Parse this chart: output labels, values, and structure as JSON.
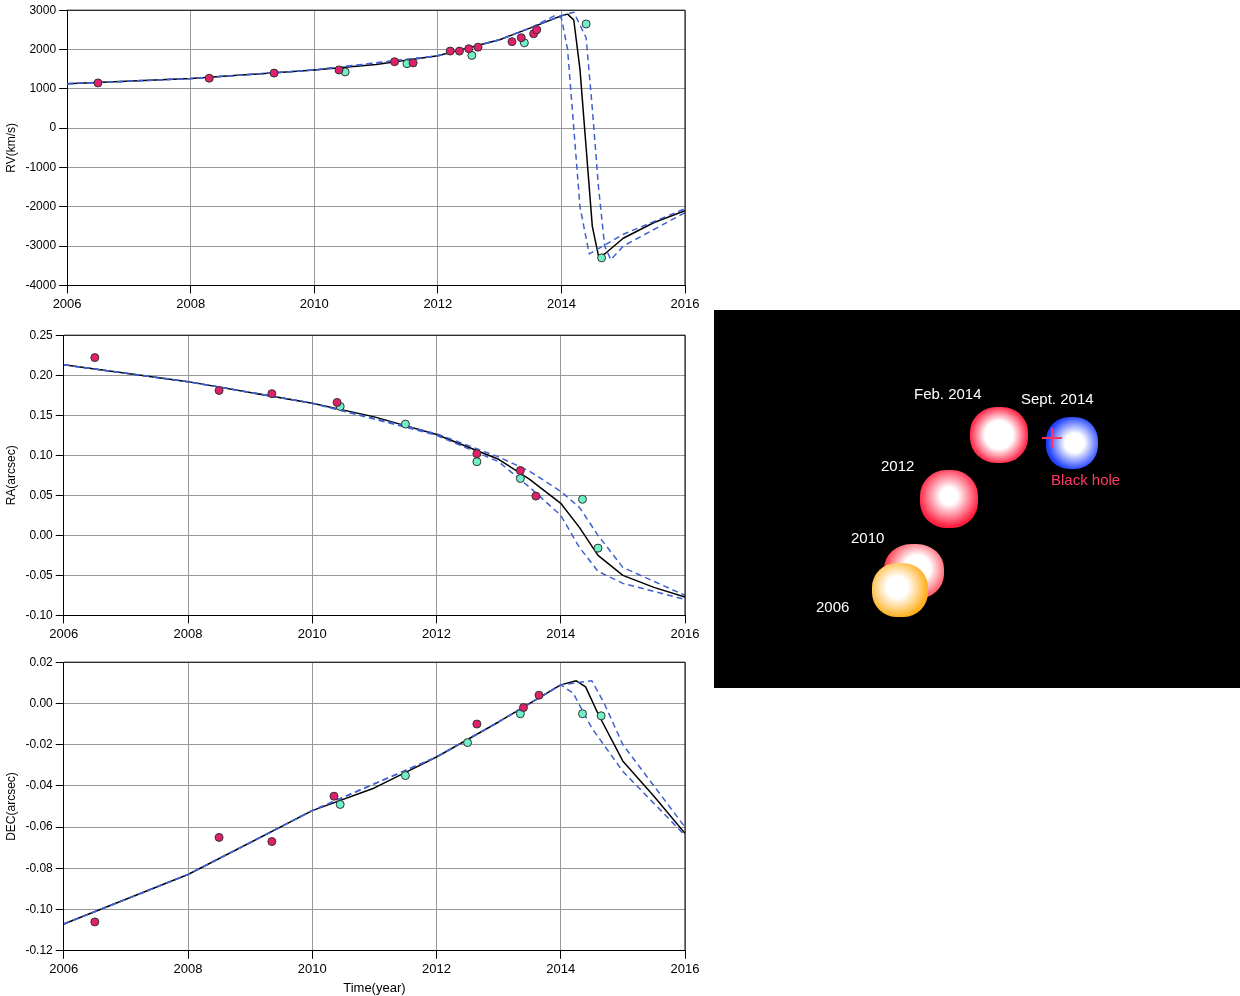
{
  "chart_data": [
    {
      "type": "line",
      "ylabel": "RV(km/s)",
      "xlim": [
        2006,
        2016
      ],
      "ylim": [
        -4000,
        3000
      ],
      "xticks": [
        2006,
        2008,
        2010,
        2012,
        2014,
        2016
      ],
      "yticks": [
        -4000,
        -3000,
        -2000,
        -1000,
        0,
        1000,
        2000,
        3000
      ],
      "grid": true,
      "series": [
        {
          "type": "line",
          "color": "#4060d0",
          "line_style": "dashed",
          "marker": "none",
          "x": [
            2006,
            2008,
            2010,
            2012,
            2013,
            2013.5,
            2013.9,
            2014,
            2014.1,
            2014.2,
            2014.3,
            2014.45,
            2015,
            2016
          ],
          "values": [
            1130,
            1260,
            1480,
            1840,
            2250,
            2550,
            2870,
            2800,
            2000,
            0,
            -2000,
            -3200,
            -2700,
            -2050
          ]
        },
        {
          "type": "line",
          "color": "#4060d0",
          "line_style": "dashed",
          "marker": "none",
          "x": [
            2006,
            2008,
            2010,
            2012,
            2013,
            2013.5,
            2014,
            2014.2,
            2014.4,
            2014.5,
            2014.6,
            2014.7,
            2014.8,
            2015,
            2016
          ],
          "values": [
            1130,
            1260,
            1480,
            1840,
            2250,
            2550,
            2860,
            2950,
            2300,
            500,
            -1500,
            -3000,
            -3350,
            -3000,
            -2150
          ]
        },
        {
          "type": "line",
          "color": "#000000",
          "line_style": "solid",
          "marker": "none",
          "x": [
            2006,
            2008,
            2010,
            2011,
            2012,
            2013,
            2013.5,
            2014,
            2014.1,
            2014.2,
            2014.3,
            2014.4,
            2014.5,
            2014.6,
            2014.7,
            2015,
            2015.5,
            2016
          ],
          "values": [
            1130,
            1260,
            1480,
            1620,
            1840,
            2250,
            2550,
            2860,
            2900,
            2750,
            1500,
            -500,
            -2500,
            -3250,
            -3200,
            -2800,
            -2400,
            -2100
          ]
        },
        {
          "type": "scatter",
          "color": "#e0206a",
          "marker": "circle",
          "x": [
            2006.5,
            2008.3,
            2009.35,
            2010.4,
            2011.3,
            2011.6,
            2012.2,
            2012.35,
            2012.5,
            2012.65,
            2013.2,
            2013.35,
            2013.55,
            2013.6
          ],
          "values": [
            1150,
            1270,
            1400,
            1480,
            1690,
            1660,
            1960,
            1960,
            2020,
            2060,
            2200,
            2300,
            2400,
            2500
          ]
        },
        {
          "type": "scatter",
          "color": "#70f0c8",
          "marker": "circle",
          "x": [
            2010.5,
            2011.5,
            2012.55,
            2013.4,
            2014.4,
            2014.65
          ],
          "values": [
            1430,
            1640,
            1850,
            2170,
            2650,
            -3300
          ]
        }
      ]
    },
    {
      "type": "line",
      "ylabel": "RA(arcsec)",
      "xlim": [
        2006,
        2016
      ],
      "ylim": [
        -0.1,
        0.25
      ],
      "xticks": [
        2006,
        2008,
        2010,
        2012,
        2014,
        2016
      ],
      "yticks": [
        {
          "value": -0.1,
          "label": "-0.10"
        },
        -0.05,
        {
          "value": 0,
          "label": "0.00"
        },
        0.05,
        {
          "value": 0.1,
          "label": "0.10"
        },
        0.15,
        {
          "value": 0.2,
          "label": "0.20"
        },
        0.25
      ],
      "grid": true,
      "series": [
        {
          "type": "line",
          "color": "#4060d0",
          "line_style": "dashed",
          "marker": "none",
          "x": [
            2006,
            2008,
            2010,
            2012,
            2013,
            2013.5,
            2014,
            2014.3,
            2014.6,
            2015,
            2016
          ],
          "values": [
            0.213,
            0.192,
            0.165,
            0.127,
            0.098,
            0.08,
            0.055,
            0.035,
            0.0,
            -0.04,
            -0.075
          ]
        },
        {
          "type": "line",
          "color": "#4060d0",
          "line_style": "dashed",
          "marker": "none",
          "x": [
            2006,
            2008,
            2010,
            2012,
            2013,
            2013.5,
            2014,
            2014.3,
            2014.6,
            2015,
            2016
          ],
          "values": [
            0.213,
            0.192,
            0.165,
            0.125,
            0.092,
            0.06,
            0.025,
            -0.015,
            -0.045,
            -0.06,
            -0.08
          ]
        },
        {
          "type": "line",
          "color": "#000000",
          "line_style": "solid",
          "marker": "none",
          "x": [
            2006,
            2008,
            2010,
            2011,
            2012,
            2013,
            2013.5,
            2014,
            2014.3,
            2014.6,
            2015,
            2015.5,
            2016
          ],
          "values": [
            0.213,
            0.192,
            0.165,
            0.148,
            0.126,
            0.095,
            0.07,
            0.04,
            0.01,
            -0.025,
            -0.05,
            -0.065,
            -0.077
          ]
        },
        {
          "type": "scatter",
          "color": "#e0206a",
          "marker": "circle",
          "x": [
            2006.5,
            2008.5,
            2009.35,
            2010.4,
            2012.65,
            2013.35,
            2013.6
          ],
          "values": [
            0.222,
            0.181,
            0.177,
            0.166,
            0.102,
            0.081,
            0.049
          ]
        },
        {
          "type": "scatter",
          "color": "#70f0c8",
          "marker": "circle",
          "x": [
            2010.45,
            2011.5,
            2012.65,
            2013.35,
            2014.35,
            2014.6
          ],
          "values": [
            0.161,
            0.139,
            0.092,
            0.071,
            0.045,
            -0.016
          ]
        }
      ]
    },
    {
      "type": "line",
      "ylabel": "DEC(arcsec)",
      "xlabel": "Time(year)",
      "xlim": [
        2006,
        2016
      ],
      "ylim": [
        -0.12,
        0.02
      ],
      "xticks": [
        2006,
        2008,
        2010,
        2012,
        2014,
        2016
      ],
      "yticks": [
        -0.12,
        {
          "value": -0.1,
          "label": "-0.10"
        },
        -0.08,
        -0.06,
        -0.04,
        -0.02,
        {
          "value": 0,
          "label": "0.00"
        },
        0.02
      ],
      "grid": true,
      "series": [
        {
          "type": "line",
          "color": "#4060d0",
          "line_style": "dashed",
          "marker": "none",
          "x": [
            2006,
            2008,
            2010,
            2012,
            2013,
            2014,
            2014.5,
            2014.7,
            2015,
            2016
          ],
          "values": [
            -0.107,
            -0.083,
            -0.052,
            -0.026,
            -0.009,
            0.009,
            0.011,
            0.0,
            -0.02,
            -0.06
          ]
        },
        {
          "type": "line",
          "color": "#4060d0",
          "line_style": "dashed",
          "marker": "none",
          "x": [
            2006,
            2008,
            2010,
            2012,
            2013,
            2014,
            2014.2,
            2014.5,
            2015,
            2016
          ],
          "values": [
            -0.107,
            -0.083,
            -0.052,
            -0.026,
            -0.009,
            0.009,
            0.005,
            -0.012,
            -0.033,
            -0.064
          ]
        },
        {
          "type": "line",
          "color": "#000000",
          "line_style": "solid",
          "marker": "none",
          "x": [
            2006,
            2008,
            2010,
            2011,
            2012,
            2013,
            2013.5,
            2014,
            2014.25,
            2014.4,
            2014.6,
            2015,
            2015.5,
            2016
          ],
          "values": [
            -0.107,
            -0.083,
            -0.052,
            -0.041,
            -0.026,
            -0.009,
            0.0,
            0.009,
            0.011,
            0.008,
            -0.005,
            -0.028,
            -0.045,
            -0.063
          ]
        },
        {
          "type": "scatter",
          "color": "#e0206a",
          "marker": "circle",
          "x": [
            2006.5,
            2008.5,
            2009.35,
            2010.35,
            2012.65,
            2013.4,
            2013.65
          ],
          "values": [
            -0.106,
            -0.065,
            -0.067,
            -0.045,
            -0.01,
            -0.002,
            0.004
          ]
        },
        {
          "type": "scatter",
          "color": "#70f0c8",
          "marker": "circle",
          "x": [
            2010.45,
            2011.5,
            2012.5,
            2013.35,
            2014.35,
            2014.65
          ],
          "values": [
            -0.049,
            -0.035,
            -0.019,
            -0.005,
            -0.005,
            -0.006
          ]
        }
      ]
    },
    {
      "type": "other",
      "annotations": [
        "Feb. 2014",
        "Sept. 2014",
        "2012",
        "2010",
        "2006",
        "Black hole"
      ]
    }
  ]
}
